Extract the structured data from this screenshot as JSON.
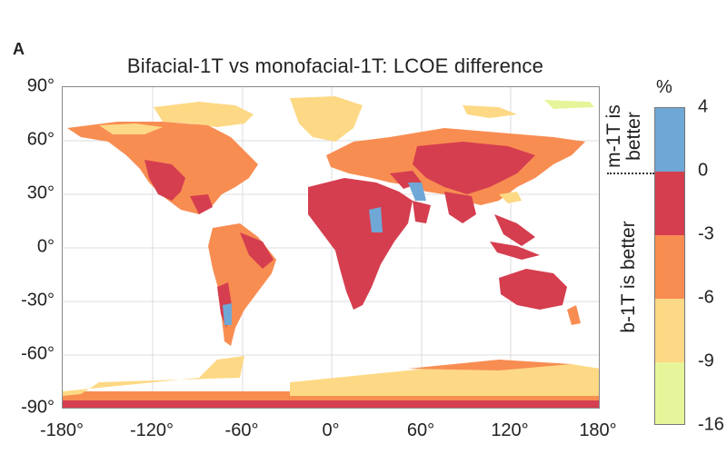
{
  "panel_label": "A",
  "title": "Bifacial-1T vs monofacial-1T: LCOE difference",
  "y_ticks": [
    "90°",
    "60°",
    "30°",
    "0°",
    "-30°",
    "-60°",
    "-90°"
  ],
  "x_ticks": [
    "-180°",
    "-120°",
    "-60°",
    "0°",
    "60°",
    "120°",
    "180°"
  ],
  "colorbar": {
    "unit": "%",
    "ticks": [
      "4",
      "0",
      "-3",
      "-6",
      "-9",
      "-16"
    ],
    "segments": [
      {
        "range": "0 to 4",
        "color": "#6fa8d6"
      },
      {
        "range": "-3 to 0",
        "color": "#d53e4f"
      },
      {
        "range": "-6 to -3",
        "color": "#f88d52"
      },
      {
        "range": "-9 to -6",
        "color": "#fdd985"
      },
      {
        "range": "-16 to -9",
        "color": "#e6f59a"
      }
    ],
    "label_top": [
      "m-1T is",
      "better"
    ],
    "label_bottom": "b-1T is better"
  },
  "chart_data": {
    "type": "heatmap",
    "title": "Bifacial-1T vs monofacial-1T: LCOE difference",
    "xlabel": "",
    "ylabel": "",
    "xlim": [
      -180,
      180
    ],
    "ylim": [
      -90,
      90
    ],
    "grid": true,
    "value_unit": "%",
    "color_scale": [
      {
        "min": 0,
        "max": 4,
        "color": "#6fa8d6",
        "meaning": "m-1T is better"
      },
      {
        "min": -3,
        "max": 0,
        "color": "#d53e4f",
        "meaning": "b-1T is better"
      },
      {
        "min": -6,
        "max": -3,
        "color": "#f88d52",
        "meaning": "b-1T is better"
      },
      {
        "min": -9,
        "max": -6,
        "color": "#fdd985",
        "meaning": "b-1T is better"
      },
      {
        "min": -16,
        "max": -9,
        "color": "#e6f59a",
        "meaning": "b-1T is better"
      }
    ]
  }
}
